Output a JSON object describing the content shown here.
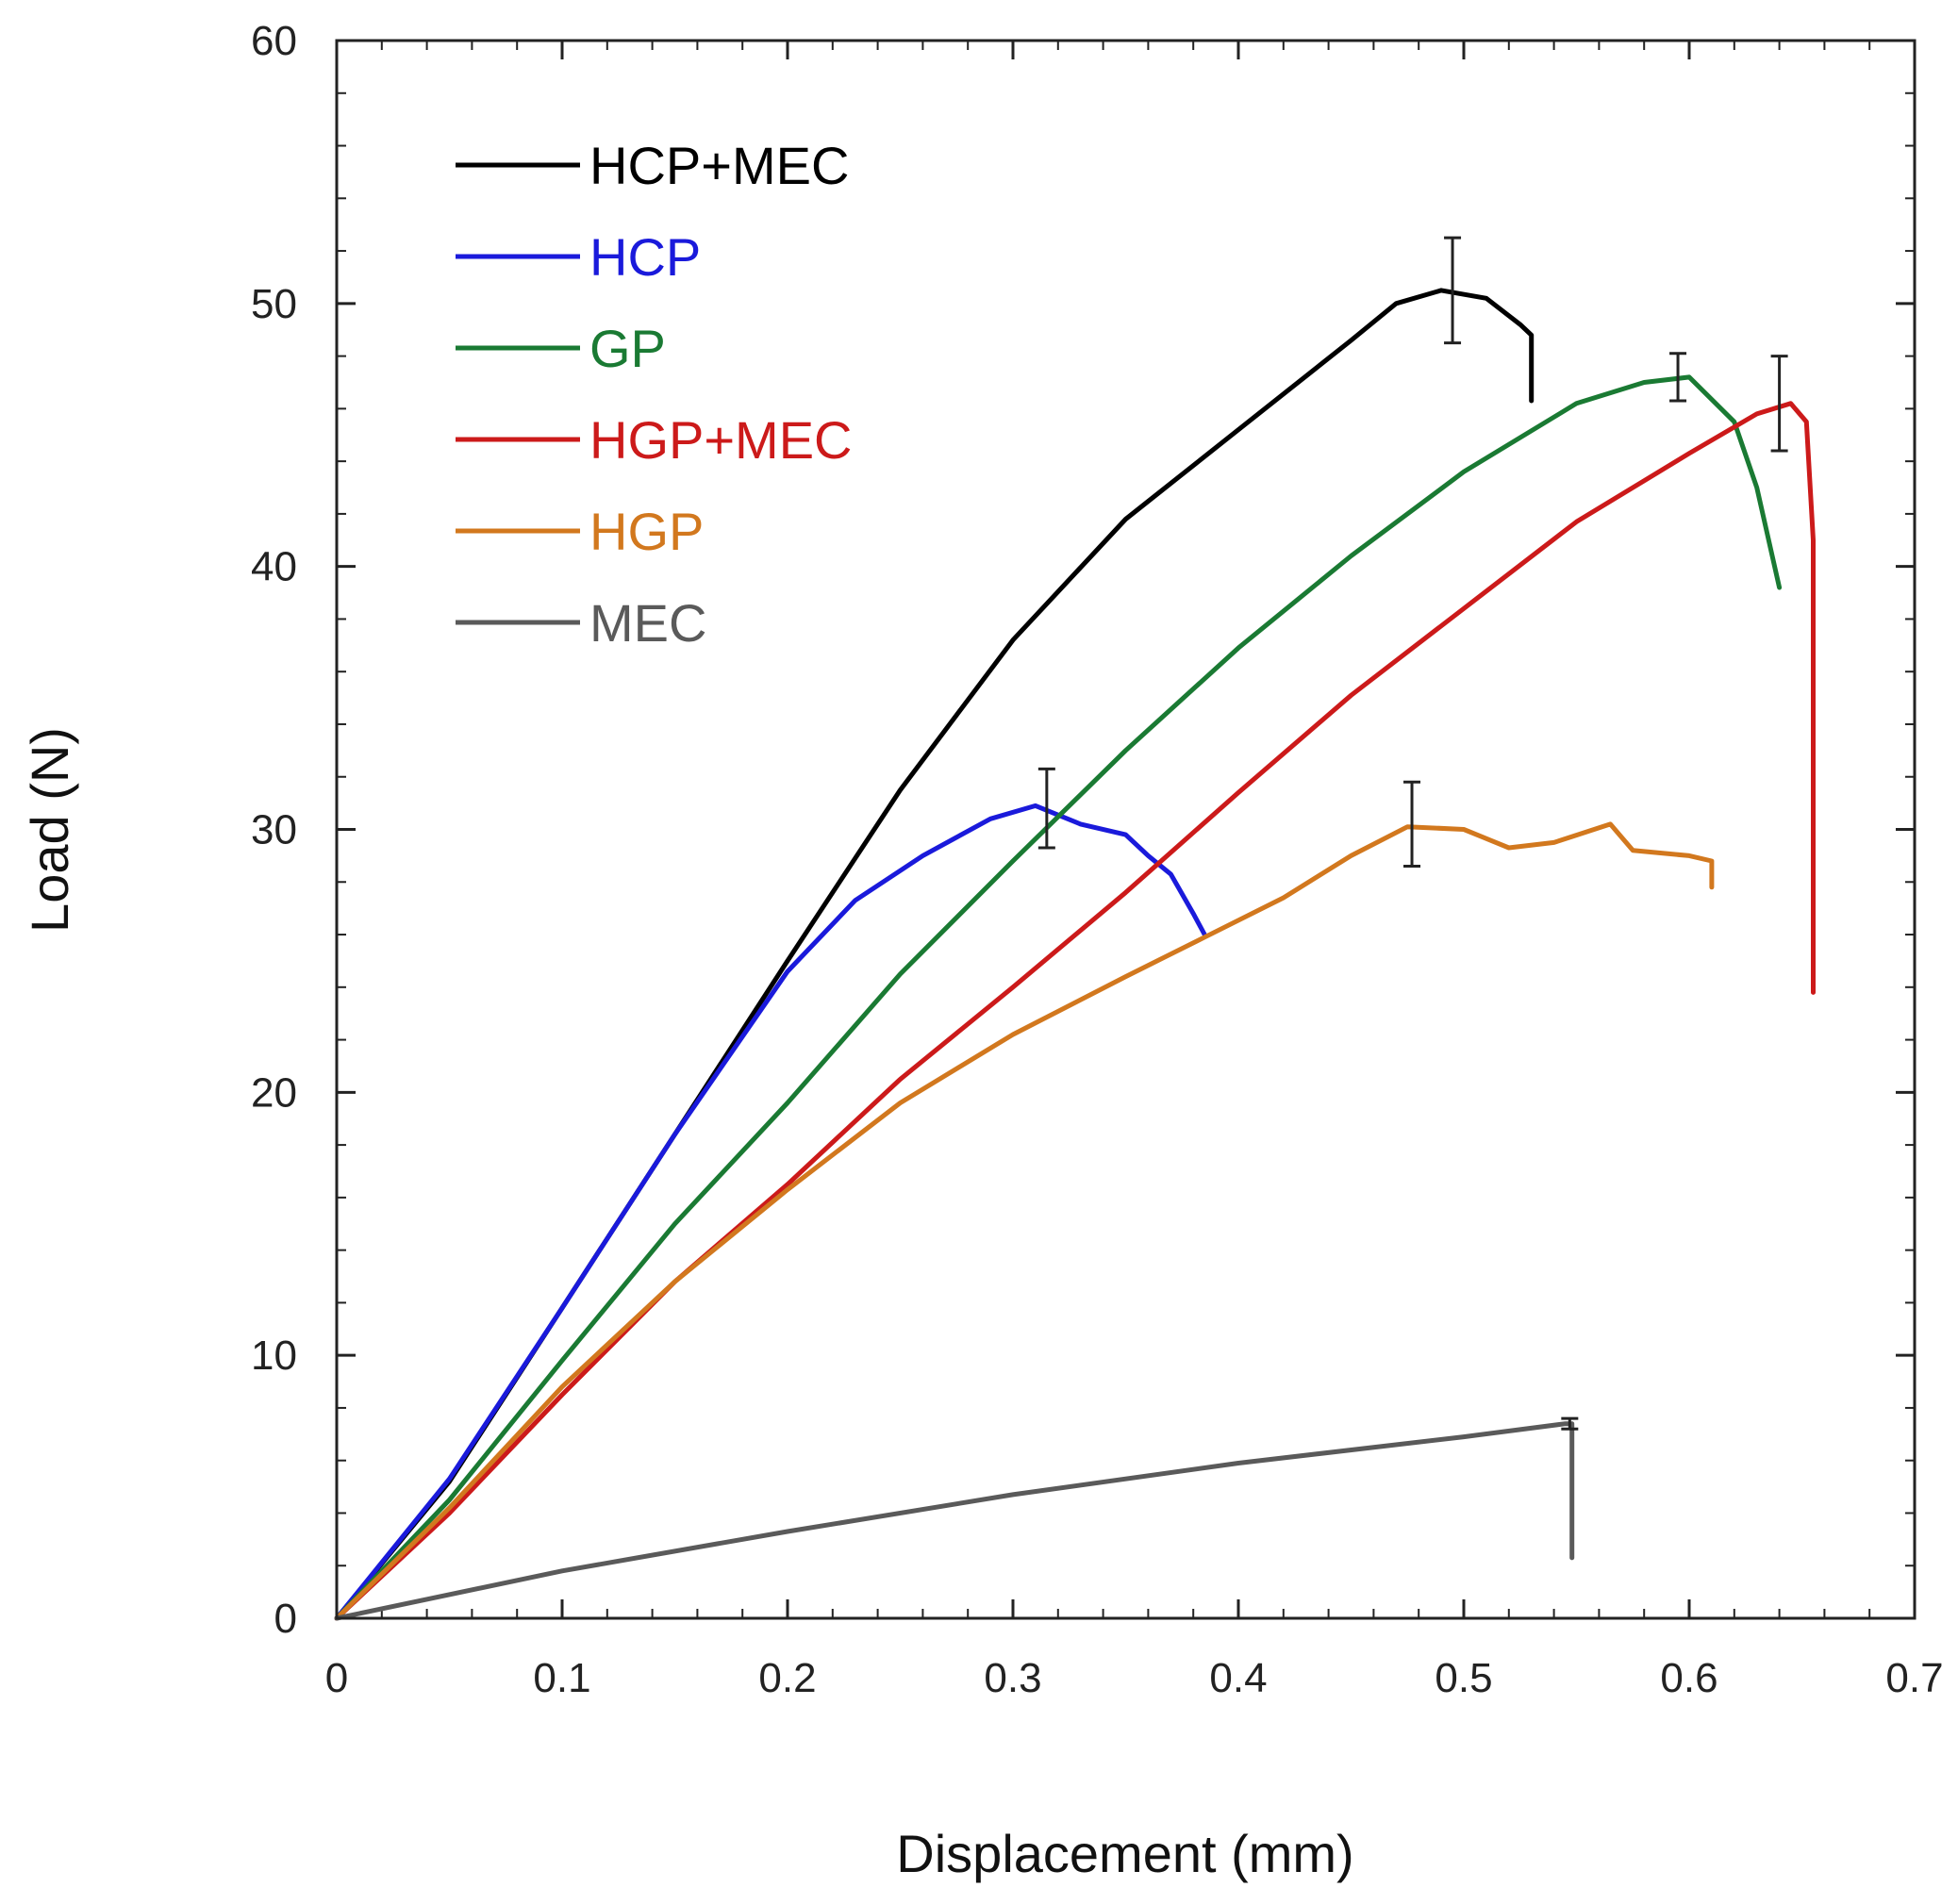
{
  "chart_data": {
    "type": "line",
    "title": "",
    "xlabel": "Displacement (mm)",
    "ylabel": "Load (N)",
    "xlim": [
      0,
      0.7
    ],
    "ylim": [
      0,
      60
    ],
    "xticks": [
      0,
      0.1,
      0.2,
      0.3,
      0.4,
      0.5,
      0.6,
      0.7
    ],
    "xtick_labels": [
      "0",
      "0.1",
      "0.2",
      "0.3",
      "0.4",
      "0.5",
      "0.6",
      "0.7"
    ],
    "yticks": [
      0,
      10,
      20,
      30,
      40,
      50,
      60
    ],
    "ytick_labels": [
      "0",
      "10",
      "20",
      "30",
      "40",
      "50",
      "60"
    ],
    "grid": false,
    "legend_position": "top-left",
    "series": [
      {
        "name": "HCP+MEC",
        "color": "#000000",
        "points": [
          [
            0,
            0
          ],
          [
            0.05,
            5.2
          ],
          [
            0.1,
            11.8
          ],
          [
            0.15,
            18.4
          ],
          [
            0.2,
            25.0
          ],
          [
            0.25,
            31.5
          ],
          [
            0.3,
            37.2
          ],
          [
            0.35,
            41.8
          ],
          [
            0.4,
            45.2
          ],
          [
            0.45,
            48.6
          ],
          [
            0.47,
            50.0
          ],
          [
            0.49,
            50.5
          ],
          [
            0.51,
            50.2
          ],
          [
            0.525,
            49.2
          ],
          [
            0.53,
            48.8
          ],
          [
            0.53,
            46.3
          ]
        ],
        "error_bars": [
          {
            "x": 0.495,
            "y": 50.5,
            "err": 2.0
          }
        ]
      },
      {
        "name": "HCP",
        "color": "#1a1adb",
        "points": [
          [
            0,
            0
          ],
          [
            0.05,
            5.3
          ],
          [
            0.1,
            11.8
          ],
          [
            0.15,
            18.4
          ],
          [
            0.2,
            24.6
          ],
          [
            0.23,
            27.3
          ],
          [
            0.26,
            29.0
          ],
          [
            0.29,
            30.4
          ],
          [
            0.31,
            30.9
          ],
          [
            0.33,
            30.2
          ],
          [
            0.35,
            29.8
          ],
          [
            0.36,
            29.0
          ],
          [
            0.37,
            28.3
          ],
          [
            0.38,
            26.8
          ],
          [
            0.385,
            26.0
          ]
        ],
        "error_bars": [
          {
            "x": 0.315,
            "y": 30.8,
            "err": 1.5
          }
        ]
      },
      {
        "name": "GP",
        "color": "#1a7a33",
        "points": [
          [
            0,
            0
          ],
          [
            0.05,
            4.5
          ],
          [
            0.1,
            9.8
          ],
          [
            0.15,
            15.0
          ],
          [
            0.2,
            19.6
          ],
          [
            0.25,
            24.5
          ],
          [
            0.3,
            28.8
          ],
          [
            0.35,
            33.0
          ],
          [
            0.4,
            36.9
          ],
          [
            0.45,
            40.4
          ],
          [
            0.5,
            43.6
          ],
          [
            0.55,
            46.2
          ],
          [
            0.58,
            47.0
          ],
          [
            0.6,
            47.2
          ],
          [
            0.62,
            45.5
          ],
          [
            0.63,
            43.0
          ],
          [
            0.64,
            39.2
          ]
        ],
        "error_bars": [
          {
            "x": 0.595,
            "y": 47.2,
            "err": 0.9
          }
        ]
      },
      {
        "name": "HGP+MEC",
        "color": "#cc1a1a",
        "points": [
          [
            0,
            0
          ],
          [
            0.05,
            4.0
          ],
          [
            0.1,
            8.5
          ],
          [
            0.15,
            12.8
          ],
          [
            0.2,
            16.5
          ],
          [
            0.25,
            20.5
          ],
          [
            0.3,
            24.0
          ],
          [
            0.35,
            27.6
          ],
          [
            0.4,
            31.4
          ],
          [
            0.45,
            35.1
          ],
          [
            0.5,
            38.4
          ],
          [
            0.55,
            41.7
          ],
          [
            0.6,
            44.3
          ],
          [
            0.63,
            45.8
          ],
          [
            0.645,
            46.2
          ],
          [
            0.652,
            45.5
          ],
          [
            0.655,
            41.0
          ],
          [
            0.655,
            23.8
          ]
        ],
        "error_bars": [
          {
            "x": 0.64,
            "y": 46.2,
            "err": 1.8
          }
        ]
      },
      {
        "name": "HGP",
        "color": "#d2781e",
        "points": [
          [
            0,
            0
          ],
          [
            0.05,
            4.2
          ],
          [
            0.1,
            8.8
          ],
          [
            0.15,
            12.8
          ],
          [
            0.2,
            16.3
          ],
          [
            0.25,
            19.6
          ],
          [
            0.3,
            22.2
          ],
          [
            0.35,
            24.4
          ],
          [
            0.385,
            25.9
          ],
          [
            0.42,
            27.4
          ],
          [
            0.45,
            29.0
          ],
          [
            0.475,
            30.1
          ],
          [
            0.5,
            30.0
          ],
          [
            0.52,
            29.3
          ],
          [
            0.54,
            29.5
          ],
          [
            0.565,
            30.2
          ],
          [
            0.575,
            29.2
          ],
          [
            0.6,
            29.0
          ],
          [
            0.61,
            28.8
          ],
          [
            0.61,
            27.8
          ]
        ],
        "error_bars": [
          {
            "x": 0.477,
            "y": 30.2,
            "err": 1.6
          }
        ]
      },
      {
        "name": "MEC",
        "color": "#5a5a5a",
        "points": [
          [
            0,
            0
          ],
          [
            0.1,
            1.8
          ],
          [
            0.2,
            3.3
          ],
          [
            0.3,
            4.7
          ],
          [
            0.4,
            5.9
          ],
          [
            0.5,
            6.9
          ],
          [
            0.545,
            7.4
          ],
          [
            0.548,
            7.4
          ],
          [
            0.548,
            2.3
          ]
        ],
        "error_bars": [
          {
            "x": 0.547,
            "y": 7.4,
            "err": 0.2
          }
        ]
      }
    ]
  }
}
